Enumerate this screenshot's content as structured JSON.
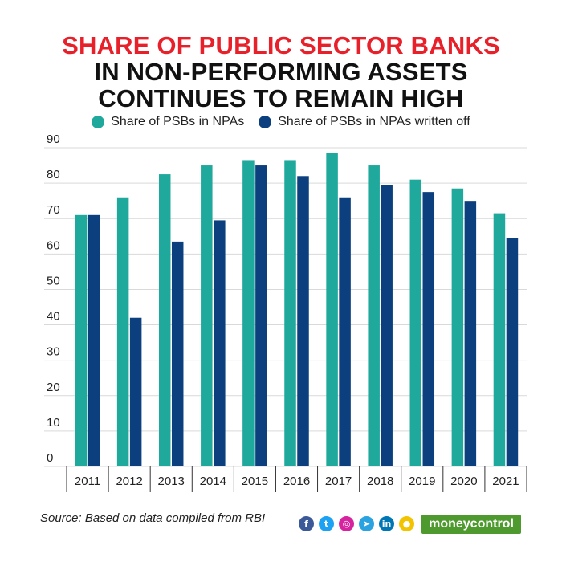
{
  "title": {
    "line1": "SHARE OF PUBLIC SECTOR BANKS",
    "line2": "IN NON-PERFORMING ASSETS",
    "line3": "CONTINUES TO REMAIN HIGH",
    "line1_color": "#e8202a",
    "line_color": "#111111"
  },
  "footer": {
    "source": "Source: Based on data compiled from RBI",
    "brand": "moneycontrol",
    "social_icons": [
      "facebook-icon",
      "twitter-icon",
      "instagram-icon",
      "telegram-icon",
      "linkedin-icon",
      "koo-icon"
    ]
  },
  "chart_data": {
    "type": "bar",
    "categories": [
      "2011",
      "2012",
      "2013",
      "2014",
      "2015",
      "2016",
      "2017",
      "2018",
      "2019",
      "2020",
      "2021"
    ],
    "series": [
      {
        "name": "Share of PSBs in NPAs",
        "color": "#1fa89c",
        "values": [
          71,
          76,
          82.5,
          85,
          86.5,
          86.5,
          88.5,
          85,
          81,
          78.5,
          71.5
        ]
      },
      {
        "name": "Share of PSBs in NPAs written off",
        "color": "#0b3f7e",
        "values": [
          71,
          42,
          63.5,
          69.5,
          85,
          82,
          76,
          79.5,
          77.5,
          75,
          64.5
        ]
      }
    ],
    "yticks": [
      0,
      10,
      20,
      30,
      40,
      50,
      60,
      70,
      80,
      90
    ],
    "ylim": [
      0,
      90
    ],
    "grid": true,
    "legend": "top-center"
  }
}
